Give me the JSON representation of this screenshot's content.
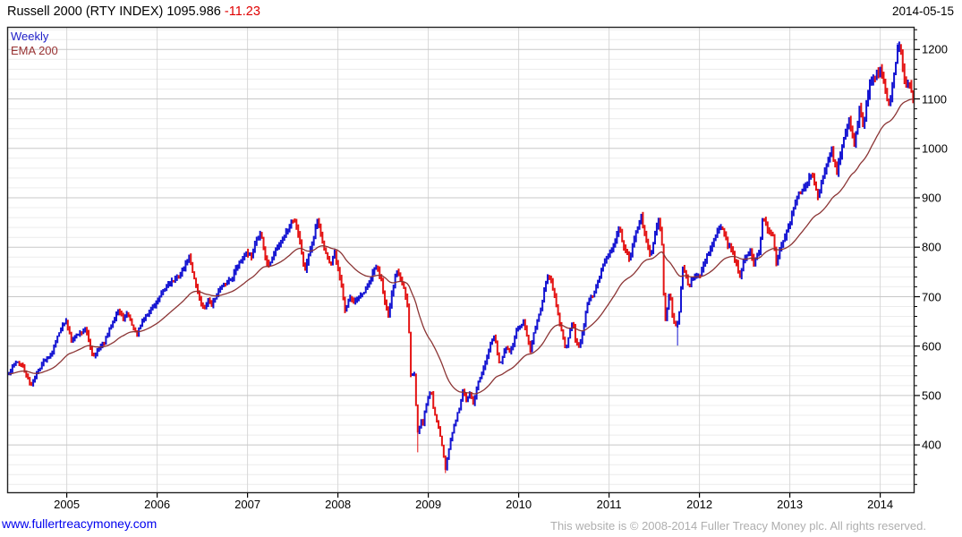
{
  "window": {
    "title_main": "Russell 2000 (RTY INDEX) 1095.986 ",
    "title_change": "-11.23",
    "date": "2014-05-15"
  },
  "legend": {
    "series1": "Weekly",
    "series2": "EMA 200"
  },
  "footer": {
    "link": "www.fullertreacymoney.com",
    "copyright": "This website is © 2008-2014 Fuller Treacy Money plc. All rights reserved."
  },
  "colors": {
    "up_bar": "#1414d2",
    "down_bar": "#e41414",
    "ema_line": "#8b3434",
    "weekly_label": "#2020c8",
    "ema_label": "#993333",
    "change_text": "#e00000",
    "link": "#0000ee",
    "copyright_text": "#aeaeae",
    "grid_major": "#c8c8c8",
    "grid_minor": "#ececec",
    "grid_year": "#d8d8d8",
    "frame": "#222222",
    "tick": "#000000"
  },
  "chart_data": {
    "type": "bar",
    "subtype": "weekly high-low bars with EMA overlay",
    "title": "Russell 2000 (RTY INDEX)",
    "last_price": 1095.986,
    "change": -11.23,
    "frequency": "Weekly",
    "overlay": "EMA 200",
    "x_ticks": [
      2005,
      2006,
      2007,
      2008,
      2009,
      2010,
      2011,
      2012,
      2013,
      2014
    ],
    "y_ticks": [
      400,
      500,
      600,
      700,
      800,
      900,
      1000,
      1100,
      1200
    ],
    "y_minor_step": 20,
    "x_range": [
      2004.36,
      2014.37
    ],
    "ylim": [
      302,
      1245
    ],
    "grid": true,
    "legend_position": "top-left",
    "series_anchors": [
      [
        2004.36,
        543
      ],
      [
        2004.44,
        571
      ],
      [
        2004.52,
        556
      ],
      [
        2004.6,
        519
      ],
      [
        2004.67,
        547
      ],
      [
        2004.75,
        572
      ],
      [
        2004.83,
        585
      ],
      [
        2004.92,
        632
      ],
      [
        2004.99,
        651
      ],
      [
        2005.05,
        613
      ],
      [
        2005.12,
        624
      ],
      [
        2005.21,
        634
      ],
      [
        2005.29,
        579
      ],
      [
        2005.33,
        590
      ],
      [
        2005.42,
        610
      ],
      [
        2005.5,
        646
      ],
      [
        2005.56,
        672
      ],
      [
        2005.63,
        655
      ],
      [
        2005.67,
        666
      ],
      [
        2005.73,
        640
      ],
      [
        2005.77,
        622
      ],
      [
        2005.85,
        655
      ],
      [
        2005.94,
        677
      ],
      [
        2006.0,
        690
      ],
      [
        2006.06,
        710
      ],
      [
        2006.13,
        728
      ],
      [
        2006.21,
        735
      ],
      [
        2006.29,
        755
      ],
      [
        2006.35,
        781
      ],
      [
        2006.4,
        745
      ],
      [
        2006.46,
        700
      ],
      [
        2006.52,
        671
      ],
      [
        2006.56,
        695
      ],
      [
        2006.6,
        682
      ],
      [
        2006.67,
        708
      ],
      [
        2006.75,
        725
      ],
      [
        2006.83,
        740
      ],
      [
        2006.9,
        768
      ],
      [
        2006.98,
        787
      ],
      [
        2007.04,
        779
      ],
      [
        2007.1,
        818
      ],
      [
        2007.15,
        829
      ],
      [
        2007.19,
        785
      ],
      [
        2007.23,
        760
      ],
      [
        2007.31,
        794
      ],
      [
        2007.4,
        820
      ],
      [
        2007.48,
        850
      ],
      [
        2007.52,
        856
      ],
      [
        2007.56,
        830
      ],
      [
        2007.6,
        788
      ],
      [
        2007.63,
        751
      ],
      [
        2007.69,
        790
      ],
      [
        2007.73,
        820
      ],
      [
        2007.77,
        852
      ],
      [
        2007.83,
        810
      ],
      [
        2007.88,
        780
      ],
      [
        2007.92,
        767
      ],
      [
        2007.96,
        790
      ],
      [
        2008.0,
        753
      ],
      [
        2008.04,
        721
      ],
      [
        2008.08,
        673
      ],
      [
        2008.13,
        700
      ],
      [
        2008.17,
        686
      ],
      [
        2008.23,
        696
      ],
      [
        2008.29,
        710
      ],
      [
        2008.35,
        730
      ],
      [
        2008.42,
        764
      ],
      [
        2008.48,
        735
      ],
      [
        2008.52,
        690
      ],
      [
        2008.56,
        657
      ],
      [
        2008.6,
        710
      ],
      [
        2008.65,
        754
      ],
      [
        2008.69,
        740
      ],
      [
        2008.73,
        718
      ],
      [
        2008.77,
        680
      ],
      [
        2008.79,
        617
      ],
      [
        2008.81,
        522
      ],
      [
        2008.84,
        560
      ],
      [
        2008.86,
        490
      ],
      [
        2008.89,
        406
      ],
      [
        2008.91,
        455
      ],
      [
        2008.94,
        440
      ],
      [
        2008.96,
        468
      ],
      [
        2009.0,
        499
      ],
      [
        2009.03,
        514
      ],
      [
        2009.06,
        470
      ],
      [
        2009.1,
        445
      ],
      [
        2009.13,
        420
      ],
      [
        2009.16,
        393
      ],
      [
        2009.19,
        351
      ],
      [
        2009.23,
        395
      ],
      [
        2009.27,
        429
      ],
      [
        2009.31,
        456
      ],
      [
        2009.35,
        479
      ],
      [
        2009.38,
        511
      ],
      [
        2009.42,
        490
      ],
      [
        2009.46,
        505
      ],
      [
        2009.5,
        480
      ],
      [
        2009.54,
        520
      ],
      [
        2009.58,
        540
      ],
      [
        2009.62,
        563
      ],
      [
        2009.65,
        580
      ],
      [
        2009.69,
        604
      ],
      [
        2009.73,
        620
      ],
      [
        2009.77,
        580
      ],
      [
        2009.79,
        562
      ],
      [
        2009.83,
        584
      ],
      [
        2009.87,
        600
      ],
      [
        2009.9,
        585
      ],
      [
        2009.94,
        605
      ],
      [
        2009.98,
        634
      ],
      [
        2010.02,
        640
      ],
      [
        2010.06,
        649
      ],
      [
        2010.1,
        612
      ],
      [
        2010.13,
        587
      ],
      [
        2010.17,
        630
      ],
      [
        2010.21,
        650
      ],
      [
        2010.25,
        680
      ],
      [
        2010.29,
        720
      ],
      [
        2010.33,
        745
      ],
      [
        2010.38,
        716
      ],
      [
        2010.42,
        680
      ],
      [
        2010.46,
        640
      ],
      [
        2010.5,
        610
      ],
      [
        2010.52,
        587
      ],
      [
        2010.56,
        629
      ],
      [
        2010.6,
        650
      ],
      [
        2010.63,
        609
      ],
      [
        2010.67,
        595
      ],
      [
        2010.71,
        630
      ],
      [
        2010.75,
        676
      ],
      [
        2010.79,
        700
      ],
      [
        2010.83,
        705
      ],
      [
        2010.87,
        727
      ],
      [
        2010.92,
        756
      ],
      [
        2010.96,
        775
      ],
      [
        2011.0,
        792
      ],
      [
        2011.04,
        800
      ],
      [
        2011.08,
        822
      ],
      [
        2011.12,
        838
      ],
      [
        2011.15,
        810
      ],
      [
        2011.19,
        790
      ],
      [
        2011.23,
        775
      ],
      [
        2011.27,
        809
      ],
      [
        2011.31,
        835
      ],
      [
        2011.35,
        868
      ],
      [
        2011.38,
        840
      ],
      [
        2011.42,
        810
      ],
      [
        2011.46,
        777
      ],
      [
        2011.5,
        820
      ],
      [
        2011.54,
        858
      ],
      [
        2011.56,
        840
      ],
      [
        2011.58,
        830
      ],
      [
        2011.6,
        720
      ],
      [
        2011.62,
        650
      ],
      [
        2011.65,
        690
      ],
      [
        2011.67,
        714
      ],
      [
        2011.69,
        680
      ],
      [
        2011.71,
        650
      ],
      [
        2011.73,
        640
      ],
      [
        2011.765,
        644
      ],
      [
        2011.79,
        700
      ],
      [
        2011.81,
        765
      ],
      [
        2011.85,
        740
      ],
      [
        2011.88,
        720
      ],
      [
        2011.92,
        735
      ],
      [
        2011.96,
        745
      ],
      [
        2012.0,
        740
      ],
      [
        2012.04,
        760
      ],
      [
        2012.08,
        780
      ],
      [
        2012.12,
        800
      ],
      [
        2012.15,
        810
      ],
      [
        2012.19,
        830
      ],
      [
        2012.23,
        846
      ],
      [
        2012.27,
        830
      ],
      [
        2012.31,
        805
      ],
      [
        2012.35,
        796
      ],
      [
        2012.38,
        780
      ],
      [
        2012.42,
        760
      ],
      [
        2012.44,
        737
      ],
      [
        2012.48,
        770
      ],
      [
        2012.52,
        780
      ],
      [
        2012.56,
        795
      ],
      [
        2012.6,
        767
      ],
      [
        2012.63,
        780
      ],
      [
        2012.67,
        800
      ],
      [
        2012.7,
        868
      ],
      [
        2012.74,
        840
      ],
      [
        2012.77,
        830
      ],
      [
        2012.81,
        825
      ],
      [
        2012.85,
        766
      ],
      [
        2012.88,
        790
      ],
      [
        2012.92,
        810
      ],
      [
        2012.96,
        830
      ],
      [
        2013.0,
        849
      ],
      [
        2013.04,
        880
      ],
      [
        2013.08,
        905
      ],
      [
        2013.12,
        911
      ],
      [
        2013.15,
        920
      ],
      [
        2013.19,
        932
      ],
      [
        2013.23,
        951
      ],
      [
        2013.27,
        930
      ],
      [
        2013.31,
        901
      ],
      [
        2013.35,
        930
      ],
      [
        2013.38,
        950
      ],
      [
        2013.42,
        975
      ],
      [
        2013.46,
        1000
      ],
      [
        2013.48,
        980
      ],
      [
        2013.52,
        952
      ],
      [
        2013.56,
        990
      ],
      [
        2013.6,
        1020
      ],
      [
        2013.63,
        1035
      ],
      [
        2013.65,
        1060
      ],
      [
        2013.69,
        1025
      ],
      [
        2013.71,
        1010
      ],
      [
        2013.75,
        1050
      ],
      [
        2013.77,
        1084
      ],
      [
        2013.81,
        1043
      ],
      [
        2013.85,
        1090
      ],
      [
        2013.88,
        1124
      ],
      [
        2013.92,
        1140
      ],
      [
        2013.96,
        1150
      ],
      [
        2014.0,
        1163
      ],
      [
        2014.04,
        1130
      ],
      [
        2014.08,
        1094
      ],
      [
        2014.1,
        1082
      ],
      [
        2014.13,
        1120
      ],
      [
        2014.17,
        1165
      ],
      [
        2014.2,
        1208
      ],
      [
        2014.23,
        1190
      ],
      [
        2014.26,
        1150
      ],
      [
        2014.29,
        1120
      ],
      [
        2014.31,
        1140
      ],
      [
        2014.33,
        1125
      ],
      [
        2014.35,
        1107
      ],
      [
        2014.37,
        1096
      ]
    ],
    "spikes": [
      {
        "t": 2008.89,
        "low": 385
      },
      {
        "t": 2009.19,
        "low": 343
      },
      {
        "t": 2011.765,
        "low": 601
      },
      {
        "t": 2014.2,
        "high": 1213
      }
    ]
  }
}
